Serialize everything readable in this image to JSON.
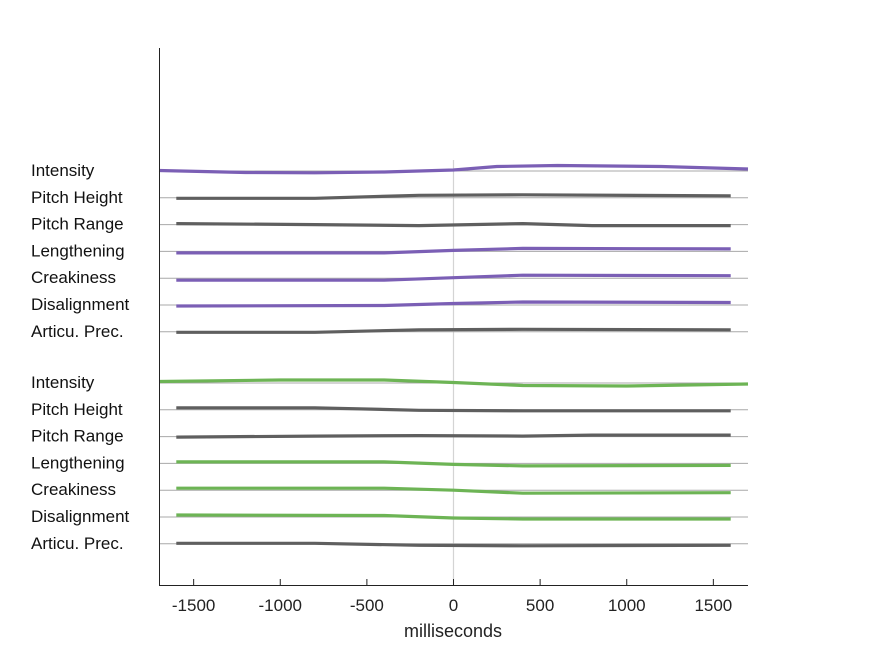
{
  "chart_data": {
    "type": "line",
    "xlabel": "milliseconds",
    "xlim": [
      -1700,
      1700
    ],
    "x_ticks": [
      -1500,
      -1000,
      -500,
      0,
      500,
      1000,
      1500
    ],
    "x_tick_labels": [
      "-1500",
      "-1000",
      "-500",
      "0",
      "500",
      "1000",
      "1500"
    ],
    "colors": {
      "purple": "#7b5fb5",
      "green": "#6db455",
      "gray": "#5f5f5f",
      "baseline": "#a8a8a8",
      "zero_line": "#d4d4d4",
      "axis": "#222222"
    },
    "groups": [
      {
        "rows": [
          {
            "label": "Intensity",
            "color": "purple",
            "points": [
              [
                -1700,
                0.1
              ],
              [
                -1200,
                -0.3
              ],
              [
                -800,
                -0.35
              ],
              [
                -400,
                -0.2
              ],
              [
                0,
                0.2
              ],
              [
                250,
                0.9
              ],
              [
                600,
                1.1
              ],
              [
                1200,
                0.9
              ],
              [
                1700,
                0.4
              ]
            ]
          },
          {
            "label": "Pitch Height",
            "color": "gray",
            "points": [
              [
                -1600,
                -0.1
              ],
              [
                -800,
                -0.1
              ],
              [
                -200,
                0.5
              ],
              [
                400,
                0.6
              ],
              [
                1600,
                0.4
              ]
            ]
          },
          {
            "label": "Pitch Range",
            "color": "gray",
            "points": [
              [
                -1600,
                0.2
              ],
              [
                -800,
                0
              ],
              [
                -200,
                -0.2
              ],
              [
                400,
                0.2
              ],
              [
                800,
                -0.2
              ],
              [
                1600,
                -0.2
              ]
            ]
          },
          {
            "label": "Lengthening",
            "color": "purple",
            "points": [
              [
                -1600,
                -0.3
              ],
              [
                -400,
                -0.3
              ],
              [
                0,
                0.2
              ],
              [
                400,
                0.6
              ],
              [
                1600,
                0.5
              ]
            ]
          },
          {
            "label": "Creakiness",
            "color": "purple",
            "points": [
              [
                -1600,
                -0.4
              ],
              [
                -400,
                -0.4
              ],
              [
                0,
                0.1
              ],
              [
                400,
                0.6
              ],
              [
                1600,
                0.5
              ]
            ]
          },
          {
            "label": "Disalignment",
            "color": "purple",
            "points": [
              [
                -1600,
                -0.2
              ],
              [
                -400,
                -0.1
              ],
              [
                0,
                0.3
              ],
              [
                400,
                0.6
              ],
              [
                1600,
                0.5
              ]
            ]
          },
          {
            "label": "Articu. Prec.",
            "color": "gray",
            "points": [
              [
                -1600,
                -0.1
              ],
              [
                -800,
                -0.1
              ],
              [
                -200,
                0.4
              ],
              [
                400,
                0.5
              ],
              [
                1600,
                0.4
              ]
            ]
          }
        ]
      },
      {
        "rows": [
          {
            "label": "Intensity",
            "color": "green",
            "points": [
              [
                -1700,
                0.3
              ],
              [
                -1000,
                0.6
              ],
              [
                -400,
                0.6
              ],
              [
                0,
                0.1
              ],
              [
                400,
                -0.5
              ],
              [
                1000,
                -0.6
              ],
              [
                1700,
                -0.2
              ]
            ]
          },
          {
            "label": "Pitch Height",
            "color": "gray",
            "points": [
              [
                -1600,
                0.4
              ],
              [
                -800,
                0.4
              ],
              [
                -200,
                -0.1
              ],
              [
                400,
                -0.2
              ],
              [
                1600,
                -0.2
              ]
            ]
          },
          {
            "label": "Pitch Range",
            "color": "gray",
            "points": [
              [
                -1600,
                -0.1
              ],
              [
                -800,
                0.1
              ],
              [
                -200,
                0.2
              ],
              [
                400,
                0.1
              ],
              [
                800,
                0.3
              ],
              [
                1600,
                0.3
              ]
            ]
          },
          {
            "label": "Lengthening",
            "color": "green",
            "points": [
              [
                -1600,
                0.3
              ],
              [
                -400,
                0.3
              ],
              [
                0,
                -0.2
              ],
              [
                400,
                -0.5
              ],
              [
                1600,
                -0.4
              ]
            ]
          },
          {
            "label": "Creakiness",
            "color": "green",
            "points": [
              [
                -1600,
                0.4
              ],
              [
                -400,
                0.4
              ],
              [
                0,
                0
              ],
              [
                400,
                -0.6
              ],
              [
                1600,
                -0.5
              ]
            ]
          },
          {
            "label": "Disalignment",
            "color": "green",
            "points": [
              [
                -1600,
                0.4
              ],
              [
                -400,
                0.3
              ],
              [
                0,
                -0.2
              ],
              [
                400,
                -0.4
              ],
              [
                1600,
                -0.4
              ]
            ]
          },
          {
            "label": "Articu. Prec.",
            "color": "gray",
            "points": [
              [
                -1600,
                0.1
              ],
              [
                -800,
                0.1
              ],
              [
                -200,
                -0.3
              ],
              [
                400,
                -0.4
              ],
              [
                1600,
                -0.3
              ]
            ]
          }
        ]
      }
    ]
  }
}
